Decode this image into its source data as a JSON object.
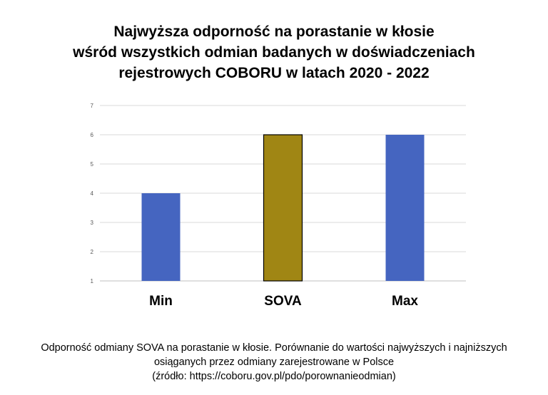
{
  "chart_data": {
    "type": "bar",
    "title_lines": [
      "Najwyższa odporność na porastanie w kłosie",
      "wśród wszystkich odmian badanych w doświadczeniach",
      "rejestrowych COBORU w latach 2020 - 2022"
    ],
    "categories": [
      "Min",
      "SOVA",
      "Max"
    ],
    "values": [
      4,
      6,
      6
    ],
    "bar_colors": [
      "#4565c0",
      "#a08614",
      "#4565c0"
    ],
    "highlight_border": "#000000",
    "ylim": [
      1,
      7
    ],
    "yticks": [
      "1",
      "2",
      "3",
      "4",
      "5",
      "6",
      "7"
    ],
    "grid": true,
    "legend": "none",
    "xlabel": "",
    "ylabel": ""
  },
  "caption_lines": [
    "Odporność odmiany SOVA na porastanie w kłosie. Porównanie do wartości najwyższych i najniższych",
    "osiąganych przez odmiany zarejestrowane w Polsce",
    "(źródło: https://coboru.gov.pl/pdo/porownanieodmian)"
  ]
}
